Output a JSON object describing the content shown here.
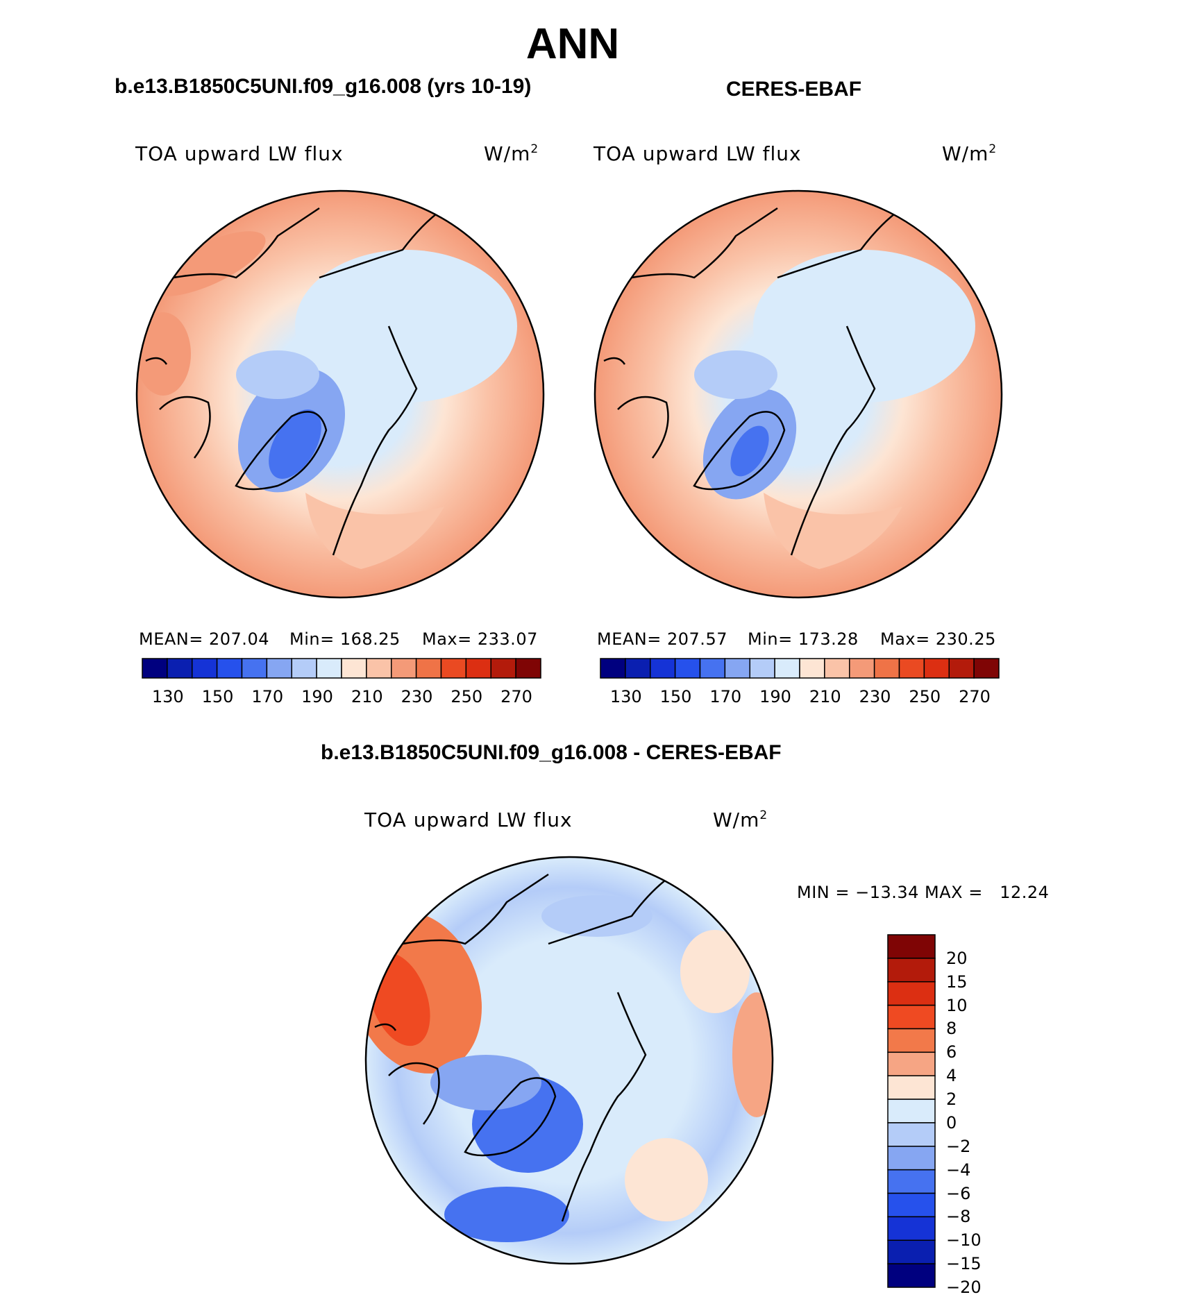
{
  "header": {
    "title": "ANN"
  },
  "panels": [
    {
      "case_title": "b.e13.B1850C5UNI.f09_g16.008 (yrs 10-19)",
      "var_label": "TOA upward LW flux",
      "units_base": "W/m",
      "units_exp": "2",
      "stats": {
        "mean_label": "MEAN=",
        "mean": "207.04",
        "min_label": "Min=",
        "min": "168.25",
        "max_label": "Max=",
        "max": "233.07"
      }
    },
    {
      "case_title": "CERES-EBAF",
      "var_label": "TOA upward LW flux",
      "units_base": "W/m",
      "units_exp": "2",
      "stats": {
        "mean_label": "MEAN=",
        "mean": "207.57",
        "min_label": "Min=",
        "min": "173.28",
        "max_label": "Max=",
        "max": "230.25"
      }
    }
  ],
  "diff_panel": {
    "case_title": "b.e13.B1850C5UNI.f09_g16.008 - CERES-EBAF",
    "var_label": "TOA upward LW flux",
    "units_base": "W/m",
    "units_exp": "2",
    "minmax": "MIN = −13.34 MAX =   12.24"
  },
  "chart_data": [
    {
      "type": "heatmap",
      "title": "b.e13.B1850C5UNI.f09_g16.008 (yrs 10-19)",
      "projection": "north polar stereographic",
      "variable": "TOA upward LW flux",
      "units": "W/m2",
      "mean": 207.04,
      "min": 168.25,
      "max": 233.07,
      "colorbar_levels": [
        120,
        130,
        140,
        150,
        160,
        170,
        180,
        190,
        200,
        210,
        220,
        230,
        240,
        250,
        260,
        270,
        280
      ],
      "colorbar_tick_labels": [
        "130",
        "150",
        "170",
        "190",
        "210",
        "230",
        "250",
        "270"
      ],
      "colors": [
        "#00007f",
        "#0a1fb0",
        "#1533d6",
        "#2651ec",
        "#4672f0",
        "#86a6f2",
        "#b4ccf8",
        "#d9ebfb",
        "#fde5d4",
        "#fac3a8",
        "#f49a78",
        "#ef7347",
        "#ea4a22",
        "#dc2f12",
        "#b31b0b",
        "#7f0505"
      ]
    },
    {
      "type": "heatmap",
      "title": "CERES-EBAF",
      "projection": "north polar stereographic",
      "variable": "TOA upward LW flux",
      "units": "W/m2",
      "mean": 207.57,
      "min": 173.28,
      "max": 230.25,
      "colorbar_levels": [
        120,
        130,
        140,
        150,
        160,
        170,
        180,
        190,
        200,
        210,
        220,
        230,
        240,
        250,
        260,
        270,
        280
      ],
      "colorbar_tick_labels": [
        "130",
        "150",
        "170",
        "190",
        "210",
        "230",
        "250",
        "270"
      ],
      "colors": [
        "#00007f",
        "#0a1fb0",
        "#1533d6",
        "#2651ec",
        "#4672f0",
        "#86a6f2",
        "#b4ccf8",
        "#d9ebfb",
        "#fde5d4",
        "#fac3a8",
        "#f49a78",
        "#ef7347",
        "#ea4a22",
        "#dc2f12",
        "#b31b0b",
        "#7f0505"
      ]
    },
    {
      "type": "heatmap",
      "title": "b.e13.B1850C5UNI.f09_g16.008 - CERES-EBAF",
      "projection": "north polar stereographic",
      "variable": "TOA upward LW flux",
      "units": "W/m2",
      "min": -13.34,
      "max": 12.24,
      "colorbar_tick_labels": [
        "20",
        "15",
        "10",
        "8",
        "6",
        "4",
        "2",
        "0",
        "−2",
        "−4",
        "−6",
        "−8",
        "−10",
        "−15",
        "−20"
      ],
      "colors_top_to_bottom": [
        "#7f0505",
        "#b31b0b",
        "#dc2f12",
        "#ef4a22",
        "#f2794a",
        "#f6a584",
        "#fde5d4",
        "#d9ebfb",
        "#b4ccf8",
        "#86a6f2",
        "#4672f0",
        "#2651ec",
        "#1533d6",
        "#0a1fb0",
        "#00007f"
      ]
    }
  ]
}
